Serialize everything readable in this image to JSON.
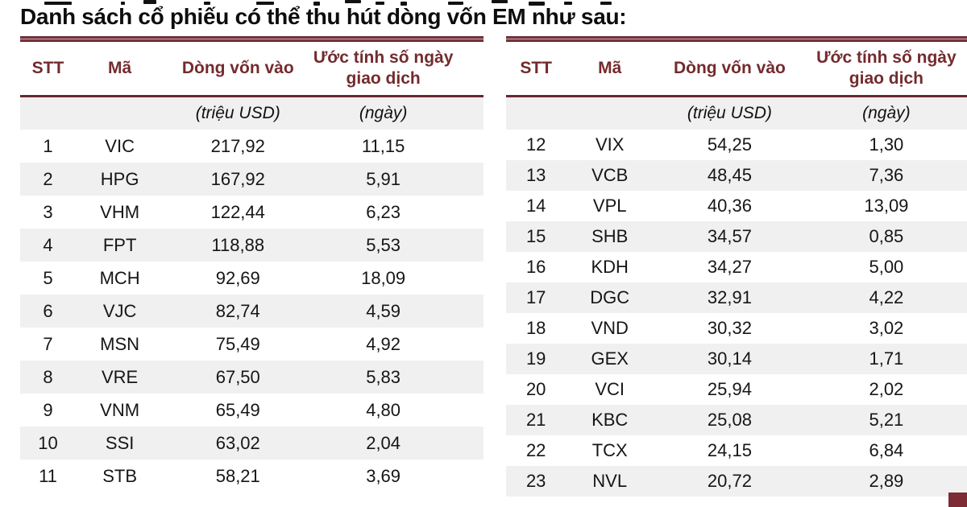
{
  "page": {
    "title": "Danh sách cổ phiếu có thể thu hút dòng vốn EM như sau:"
  },
  "table": {
    "headers": [
      "STT",
      "Mã",
      "Dòng vốn vào",
      "Ước tính số ngày giao dịch"
    ],
    "units": {
      "flow_unit": "(triệu USD)",
      "days_unit": "(ngày)"
    },
    "left_rows": [
      {
        "stt": "1",
        "ma": "VIC",
        "flow": "217,92",
        "days": "11,15"
      },
      {
        "stt": "2",
        "ma": "HPG",
        "flow": "167,92",
        "days": "5,91"
      },
      {
        "stt": "3",
        "ma": "VHM",
        "flow": "122,44",
        "days": "6,23"
      },
      {
        "stt": "4",
        "ma": "FPT",
        "flow": "118,88",
        "days": "5,53"
      },
      {
        "stt": "5",
        "ma": "MCH",
        "flow": "92,69",
        "days": "18,09"
      },
      {
        "stt": "6",
        "ma": "VJC",
        "flow": "82,74",
        "days": "4,59"
      },
      {
        "stt": "7",
        "ma": "MSN",
        "flow": "75,49",
        "days": "4,92"
      },
      {
        "stt": "8",
        "ma": "VRE",
        "flow": "67,50",
        "days": "5,83"
      },
      {
        "stt": "9",
        "ma": "VNM",
        "flow": "65,49",
        "days": "4,80"
      },
      {
        "stt": "10",
        "ma": "SSI",
        "flow": "63,02",
        "days": "2,04"
      },
      {
        "stt": "11",
        "ma": "STB",
        "flow": "58,21",
        "days": "3,69"
      }
    ],
    "right_rows": [
      {
        "stt": "12",
        "ma": "VIX",
        "flow": "54,25",
        "days": "1,30"
      },
      {
        "stt": "13",
        "ma": "VCB",
        "flow": "48,45",
        "days": "7,36"
      },
      {
        "stt": "14",
        "ma": "VPL",
        "flow": "40,36",
        "days": "13,09"
      },
      {
        "stt": "15",
        "ma": "SHB",
        "flow": "34,57",
        "days": "0,85"
      },
      {
        "stt": "16",
        "ma": "KDH",
        "flow": "34,27",
        "days": "5,00"
      },
      {
        "stt": "17",
        "ma": "DGC",
        "flow": "32,91",
        "days": "4,22"
      },
      {
        "stt": "18",
        "ma": "VND",
        "flow": "30,32",
        "days": "3,02"
      },
      {
        "stt": "19",
        "ma": "GEX",
        "flow": "30,14",
        "days": "1,71"
      },
      {
        "stt": "20",
        "ma": "VCI",
        "flow": "25,94",
        "days": "2,02"
      },
      {
        "stt": "21",
        "ma": "KBC",
        "flow": "25,08",
        "days": "5,21"
      },
      {
        "stt": "22",
        "ma": "TCX",
        "flow": "24,15",
        "days": "6,84"
      },
      {
        "stt": "23",
        "ma": "NVL",
        "flow": "20,72",
        "days": "2,89"
      }
    ]
  },
  "colors": {
    "header_text_maroon": "#732B2E",
    "rule_maroon": "#672731",
    "stripe_gray": "#F0F0F0",
    "body_text": "#161616",
    "corner_mark_maroon": "#7D2B34"
  }
}
